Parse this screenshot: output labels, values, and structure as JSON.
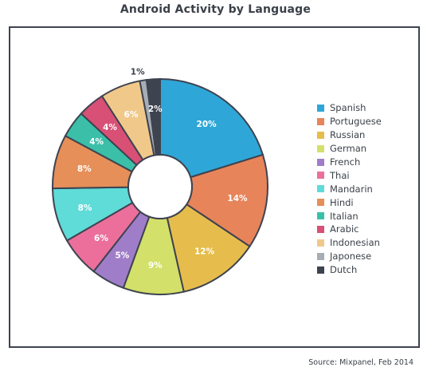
{
  "chart_data": {
    "type": "pie",
    "title": "Android Activity by Language",
    "source": "Source: Mixpanel, Feb 2014",
    "legend_position": "right",
    "donut": true,
    "slices": [
      {
        "name": "Spanish",
        "value": 20,
        "label": "20%",
        "color": "#2ea7d8"
      },
      {
        "name": "Portuguese",
        "value": 14,
        "label": "14%",
        "color": "#e8845a"
      },
      {
        "name": "Russian",
        "value": 12,
        "label": "12%",
        "color": "#e6bd4c"
      },
      {
        "name": "German",
        "value": 9,
        "label": "9%",
        "color": "#d3e06a"
      },
      {
        "name": "French",
        "value": 5,
        "label": "5%",
        "color": "#a07dc8"
      },
      {
        "name": "Thai",
        "value": 6,
        "label": "6%",
        "color": "#ec6f9b"
      },
      {
        "name": "Mandarin",
        "value": 8,
        "label": "8%",
        "color": "#5fdbd8"
      },
      {
        "name": "Hindi",
        "value": 8,
        "label": "8%",
        "color": "#e68f58"
      },
      {
        "name": "Italian",
        "value": 4,
        "label": "4%",
        "color": "#3bbfa8"
      },
      {
        "name": "Arabic",
        "value": 4,
        "label": "4%",
        "color": "#d85076"
      },
      {
        "name": "Indonesian",
        "value": 6,
        "label": "6%",
        "color": "#f0c98a"
      },
      {
        "name": "Japonese",
        "value": 1,
        "label": "1%",
        "color": "#a7adb5"
      },
      {
        "name": "Dutch",
        "value": 2,
        "label": "2%",
        "color": "#3e4350"
      }
    ]
  }
}
